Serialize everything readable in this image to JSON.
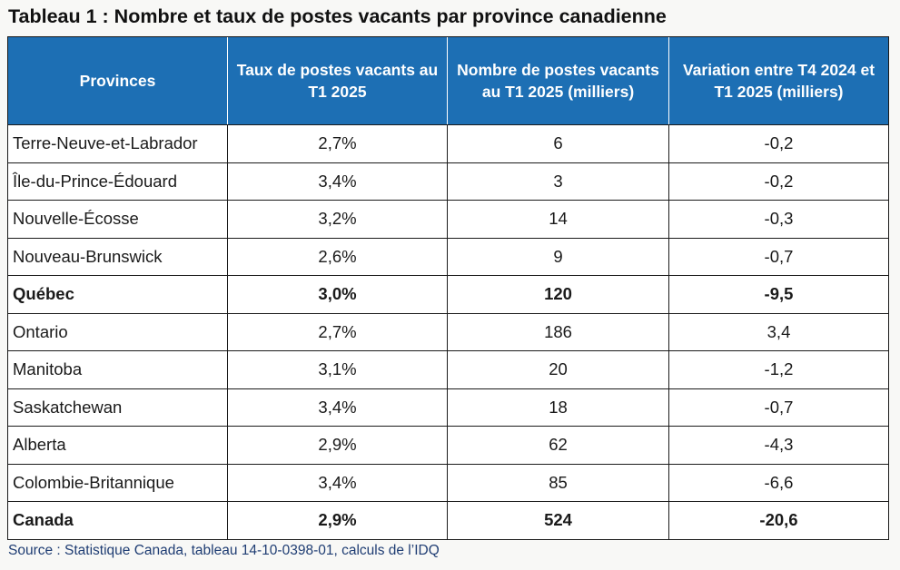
{
  "title": "Tableau 1 : Nombre et taux de postes vacants par province canadienne",
  "headers": {
    "col1": "Provinces",
    "col2": "Taux de postes vacants au T1 2025",
    "col3": "Nombre de postes vacants au T1 2025 (milliers)",
    "col4": "Variation entre T4 2024 et T1 2025 (milliers)"
  },
  "rows": [
    {
      "province": "Terre-Neuve-et-Labrador",
      "taux": "2,7%",
      "nombre": "6",
      "variation": "-0,2",
      "bold": false
    },
    {
      "province": "Île-du-Prince-Édouard",
      "taux": "3,4%",
      "nombre": "3",
      "variation": "-0,2",
      "bold": false
    },
    {
      "province": "Nouvelle-Écosse",
      "taux": "3,2%",
      "nombre": "14",
      "variation": "-0,3",
      "bold": false
    },
    {
      "province": "Nouveau-Brunswick",
      "taux": "2,6%",
      "nombre": "9",
      "variation": "-0,7",
      "bold": false
    },
    {
      "province": "Québec",
      "taux": "3,0%",
      "nombre": "120",
      "variation": "-9,5",
      "bold": true
    },
    {
      "province": "Ontario",
      "taux": "2,7%",
      "nombre": "186",
      "variation": "3,4",
      "bold": false
    },
    {
      "province": "Manitoba",
      "taux": "3,1%",
      "nombre": "20",
      "variation": "-1,2",
      "bold": false
    },
    {
      "province": "Saskatchewan",
      "taux": "3,4%",
      "nombre": "18",
      "variation": "-0,7",
      "bold": false
    },
    {
      "province": "Alberta",
      "taux": "2,9%",
      "nombre": "62",
      "variation": "-4,3",
      "bold": false
    },
    {
      "province": "Colombie-Britannique",
      "taux": "3,4%",
      "nombre": "85",
      "variation": "-6,6",
      "bold": false
    },
    {
      "province": "Canada",
      "taux": "2,9%",
      "nombre": "524",
      "variation": "-20,6",
      "bold": true
    }
  ],
  "source": "Source : Statistique Canada, tableau 14-10-0398-01, calculs de l’IDQ",
  "colors": {
    "header_bg": "#1d6fb4",
    "header_text": "#ffffff",
    "source_text": "#1f3d73"
  }
}
